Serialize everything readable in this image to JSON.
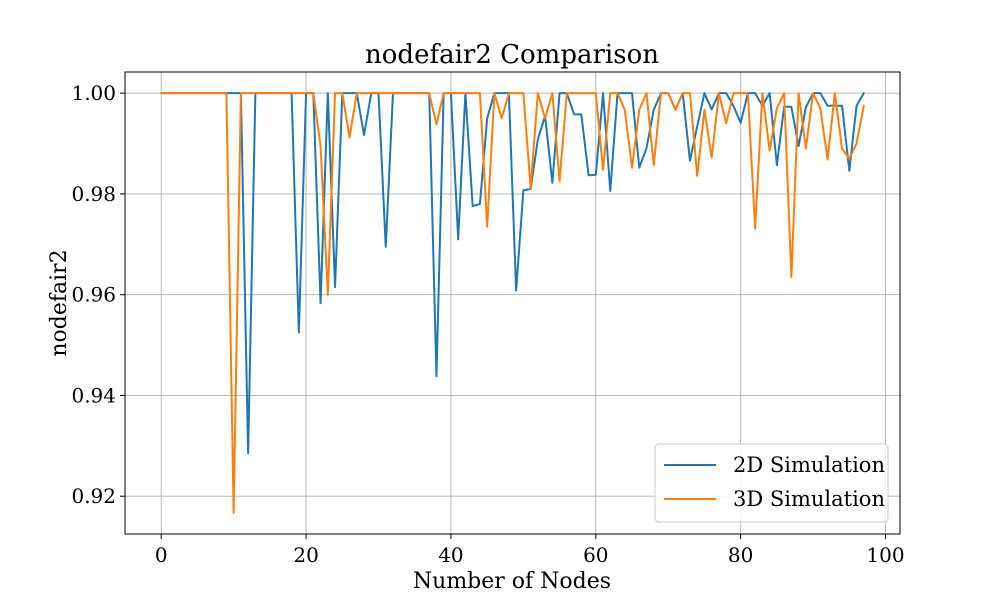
{
  "chart_data": {
    "type": "line",
    "title": "nodefair2 Comparison",
    "xlabel": "Number of Nodes",
    "ylabel": "nodefair2",
    "xlim": [
      -5,
      102
    ],
    "ylim": [
      0.9125,
      1.0042
    ],
    "xticks": [
      0,
      20,
      40,
      60,
      80,
      100
    ],
    "yticks": [
      0.92,
      0.94,
      0.96,
      0.98,
      1.0
    ],
    "xtick_labels": [
      "0",
      "20",
      "40",
      "60",
      "80",
      "100"
    ],
    "ytick_labels": [
      "0.92",
      "0.94",
      "0.96",
      "0.98",
      "1.00"
    ],
    "grid": true,
    "legend_position": "lower-right",
    "x": [
      0,
      1,
      2,
      3,
      4,
      5,
      6,
      7,
      8,
      9,
      10,
      11,
      12,
      13,
      14,
      15,
      16,
      17,
      18,
      19,
      20,
      21,
      22,
      23,
      24,
      25,
      26,
      27,
      28,
      29,
      30,
      31,
      32,
      33,
      34,
      35,
      36,
      37,
      38,
      39,
      40,
      41,
      42,
      43,
      44,
      45,
      46,
      47,
      48,
      49,
      50,
      51,
      52,
      53,
      54,
      55,
      56,
      57,
      58,
      59,
      60,
      61,
      62,
      63,
      64,
      65,
      66,
      67,
      68,
      69,
      70,
      71,
      72,
      73,
      74,
      75,
      76,
      77,
      78,
      79,
      80,
      81,
      82,
      83,
      84,
      85,
      86,
      87,
      88,
      89,
      90,
      91,
      92,
      93,
      94,
      95,
      96,
      97
    ],
    "series": [
      {
        "name": "2D Simulation",
        "color": "#1f77b4",
        "values": [
          1,
          1,
          1,
          1,
          1,
          1,
          1,
          1,
          1,
          1,
          1,
          1,
          0.9285,
          1,
          1,
          1,
          1,
          1,
          1,
          0.9525,
          1,
          1,
          0.9583,
          1,
          0.9615,
          1,
          1,
          1,
          0.9917,
          1,
          1,
          0.9695,
          1,
          1,
          1,
          1,
          1,
          1,
          0.9438,
          1,
          1,
          0.971,
          1,
          0.9776,
          0.978,
          0.995,
          1,
          1,
          1,
          0.9608,
          0.9807,
          0.981,
          0.9908,
          0.9955,
          0.9822,
          1,
          1,
          0.9958,
          0.9958,
          0.9837,
          0.9838,
          1,
          0.9806,
          1,
          1,
          1,
          0.9852,
          0.9891,
          0.9967,
          1,
          1,
          0.9967,
          1,
          0.9866,
          0.9934,
          1,
          0.9968,
          1,
          1,
          0.9975,
          0.9941,
          1,
          1,
          0.9975,
          1,
          0.9857,
          0.9973,
          0.9973,
          0.9895,
          0.9972,
          1,
          1,
          0.9975,
          0.9975,
          0.9975,
          0.9846,
          0.9975,
          1
        ]
      },
      {
        "name": "3D Simulation",
        "color": "#ff7f0e",
        "values": [
          1,
          1,
          1,
          1,
          1,
          1,
          1,
          1,
          1,
          1,
          0.9167,
          1,
          1,
          1,
          1,
          1,
          1,
          1,
          1,
          1,
          1,
          1,
          0.9895,
          0.96,
          1,
          1,
          0.9912,
          1,
          1,
          1,
          1,
          1,
          1,
          1,
          1,
          1,
          1,
          1,
          0.9938,
          1,
          1,
          1,
          1,
          1,
          1,
          0.9735,
          1,
          0.995,
          1,
          1,
          1,
          0.9812,
          1,
          0.995,
          1,
          0.9825,
          1,
          1,
          1,
          1,
          1,
          0.9848,
          1,
          1,
          0.9967,
          0.9852,
          0.9967,
          1,
          0.9857,
          1,
          1,
          0.9967,
          1,
          1,
          0.9836,
          0.9967,
          0.9872,
          1,
          0.994,
          1,
          1,
          1,
          0.9731,
          1,
          0.9886,
          0.997,
          1,
          0.9635,
          1,
          0.989,
          1,
          0.997,
          0.9868,
          1,
          0.989,
          0.987,
          0.99,
          0.9975
        ]
      }
    ]
  }
}
